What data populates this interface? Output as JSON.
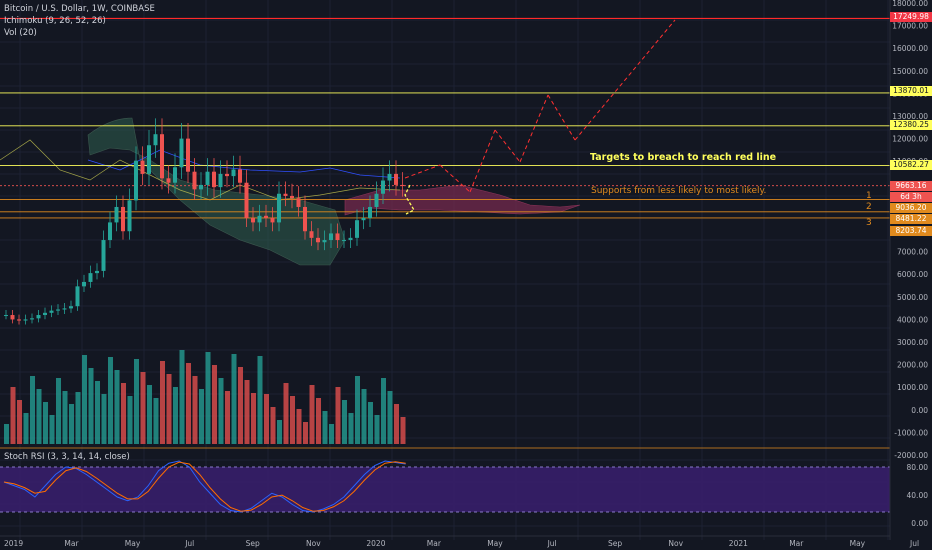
{
  "header": {
    "symbol": "Bitcoin / U.S. Dollar, 1W, COINBASE",
    "ichimoku": "Ichimoku (9, 26, 52, 26)",
    "volume": "Vol (20)",
    "stoch": "Stoch RSI (3, 3, 14, 14, close)"
  },
  "annotations": {
    "targets": "Targets to breach to reach red line",
    "supports": "Supports from less likely to most likely.",
    "s1": "1",
    "s2": "2",
    "s3": "3"
  },
  "price_pills": {
    "p1": "17249.98",
    "p2": "13870.01",
    "p3": "12380.25",
    "p4": "10582.27",
    "p5": "9663.16",
    "p6": "6d 3h",
    "p7": "9036.20",
    "p8": "8481.22",
    "p9": "8203.74"
  },
  "colors": {
    "up": "#26a69a",
    "down": "#ef5350",
    "yellow": "#ffff5c",
    "red_line": "#ff2a2a",
    "stoch": "#4a2380",
    "bg": "#131722"
  },
  "chart_data": {
    "type": "candlestick",
    "x_ticks": [
      "2019",
      "Mar",
      "May",
      "Jul",
      "Sep",
      "Nov",
      "2020",
      "Mar",
      "May",
      "Jul",
      "Sep",
      "Nov",
      "2021",
      "Mar",
      "May",
      "Jul"
    ],
    "price_ticks": [
      "18000.00",
      "17000.00",
      "16000.00",
      "15000.00",
      "14000.00",
      "13000.00",
      "12000.00",
      "11000.00",
      "10000.00",
      "9000.00",
      "8000.00",
      "7000.00",
      "6000.00",
      "5000.00",
      "4000.00",
      "3000.00",
      "2000.00",
      "1000.00",
      "0.00",
      "-1000.00",
      "-2000.00"
    ],
    "stoch_ticks": [
      "80.00",
      "40.00",
      "0.00"
    ],
    "weekly_close": [
      3800,
      3600,
      3550,
      3600,
      3650,
      3800,
      3900,
      4000,
      4050,
      4100,
      4200,
      5100,
      5300,
      5700,
      5800,
      7200,
      8000,
      8700,
      7600,
      9000,
      10800,
      10200,
      11500,
      12000,
      10000,
      9800,
      10500,
      11800,
      10300,
      9500,
      9700,
      10300,
      9600,
      10200,
      10100,
      10400,
      9800,
      8200,
      8000,
      8300,
      8200,
      8000,
      9300,
      9200,
      9100,
      8700,
      7600,
      7300,
      7100,
      7200,
      7500,
      7200,
      7200,
      7300,
      8100,
      8200,
      8700,
      9300,
      9900,
      10200,
      9700,
      9650
    ],
    "horizontal_levels": [
      17249.98,
      13870.01,
      12380.25,
      10582.27,
      9663.16,
      9036.2,
      8481.22,
      8203.74
    ],
    "projection_path": [
      [
        9663,
        10500
      ],
      [
        9300,
        12200
      ],
      [
        10500,
        13900
      ],
      [
        12000,
        17250
      ]
    ],
    "volume_note": "Vol (20) histogram",
    "stoch_bands": [
      80,
      20
    ]
  }
}
